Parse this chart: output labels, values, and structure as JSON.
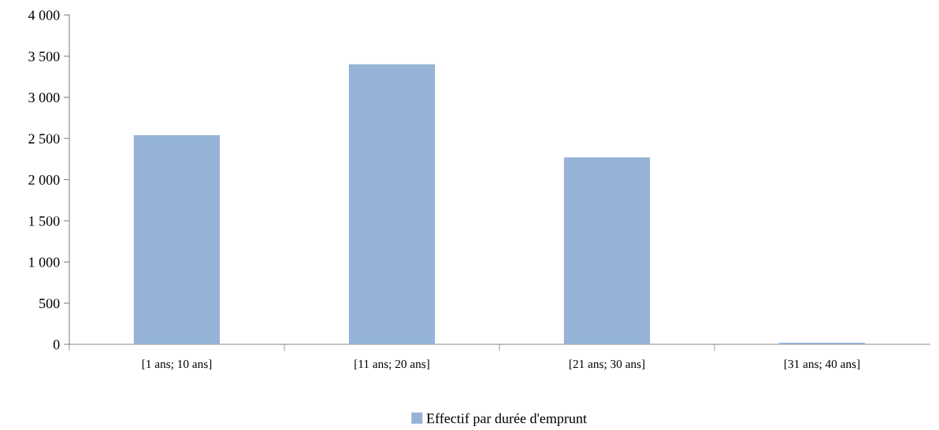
{
  "chart_data": {
    "type": "bar",
    "categories": [
      "[1 ans; 10 ans]",
      "[11 ans; 20 ans]",
      "[21 ans; 30 ans]",
      "[31 ans; 40 ans]"
    ],
    "series": [
      {
        "name": "Effectif par durée d'emprunt",
        "color": "#95b3d7",
        "values": [
          2540,
          3400,
          2270,
          20
        ]
      }
    ],
    "ylim": [
      0,
      4000
    ],
    "yticks": [
      0,
      500,
      {
        "value": 1000,
        "label": "1 000"
      },
      {
        "value": 1500,
        "label": "1 500"
      },
      {
        "value": 2000,
        "label": "2 000"
      },
      {
        "value": 2500,
        "label": "2 500"
      },
      {
        "value": 3000,
        "label": "3 000"
      },
      {
        "value": 3500,
        "label": "3 500"
      },
      {
        "value": 4000,
        "label": "4 000"
      }
    ],
    "grid": false,
    "legend": "bottom"
  }
}
